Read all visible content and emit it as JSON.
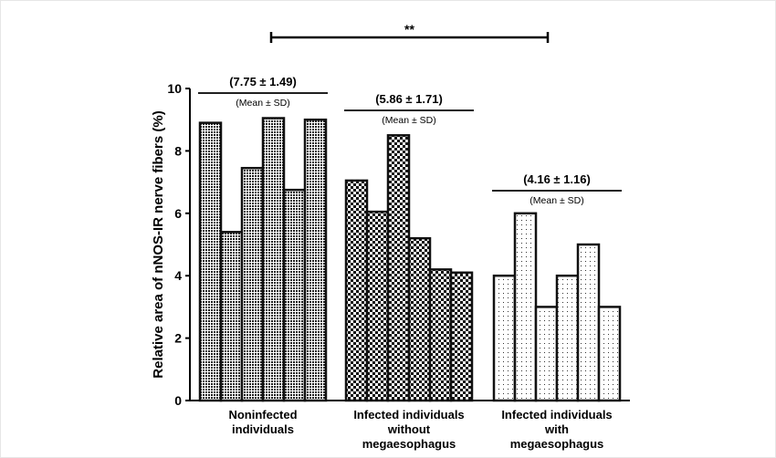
{
  "chart_data": {
    "type": "bar",
    "ylabel": "Relative area of nNOS-IR nerve fibers (%)",
    "xlabel": "",
    "ylim": [
      0,
      10
    ],
    "yticks": [
      "0",
      "2",
      "4",
      "6",
      "8",
      "10"
    ],
    "groups": [
      {
        "name_lines": [
          "Noninfected",
          "individuals"
        ],
        "values": [
          8.9,
          5.4,
          7.45,
          9.05,
          6.75,
          9.0
        ],
        "mean_label": "(7.75 ± 1.49)",
        "sd_label": "(Mean ± SD)",
        "pattern": "dense"
      },
      {
        "name_lines": [
          "Infected individuals",
          "without",
          "megaesophagus"
        ],
        "values": [
          7.05,
          6.05,
          8.5,
          5.2,
          4.2,
          4.1
        ],
        "mean_label": "(5.86 ± 1.71)",
        "sd_label": "(Mean ± SD)",
        "pattern": "checker"
      },
      {
        "name_lines": [
          "Infected individuals",
          "with",
          "megaesophagus"
        ],
        "values": [
          4.0,
          6.0,
          3.0,
          4.0,
          5.0,
          3.0
        ],
        "mean_label": "(4.16 ± 1.16)",
        "sd_label": "(Mean ± SD)",
        "pattern": "dots"
      }
    ],
    "significance": {
      "label": "**",
      "from_group": 0,
      "to_group": 2
    },
    "colors": {
      "axis": "#000000",
      "bar_stroke": "#111111",
      "background": "#ffffff"
    }
  }
}
